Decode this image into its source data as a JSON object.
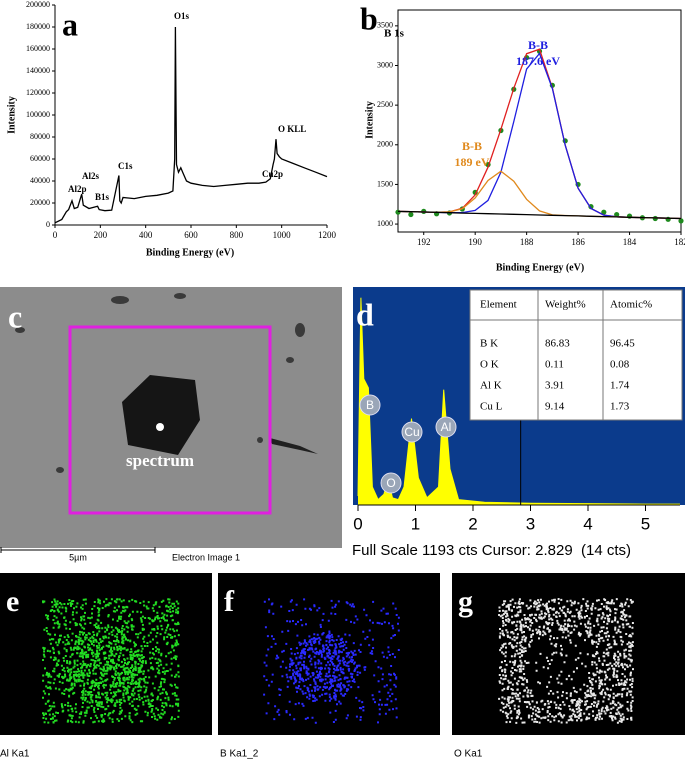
{
  "chart_data": [
    {
      "type": "line",
      "panel_label": "a",
      "xlabel": "Binding Energy (eV)",
      "ylabel": "Intensity",
      "x": [
        0,
        30,
        50,
        60,
        75,
        85,
        100,
        118,
        125,
        150,
        188,
        195,
        220,
        250,
        282,
        286,
        292,
        300,
        350,
        400,
        450,
        500,
        520,
        528,
        531,
        536,
        545,
        555,
        565,
        580,
        600,
        650,
        700,
        750,
        800,
        850,
        900,
        930,
        950,
        962,
        968,
        975,
        980,
        990,
        1000,
        1050,
        1100,
        1150,
        1200
      ],
      "series": [
        {
          "color": "#000000",
          "style": "line",
          "values": [
            2000,
            5000,
            12000,
            14000,
            22000,
            15000,
            16000,
            28000,
            18000,
            15000,
            17000,
            14000,
            13000,
            13500,
            45000,
            22000,
            20000,
            25000,
            24000,
            26000,
            27000,
            29000,
            31000,
            60000,
            180000,
            55000,
            48000,
            52000,
            47000,
            40000,
            38000,
            36000,
            35000,
            36000,
            37000,
            38000,
            38000,
            39000,
            42000,
            55000,
            60000,
            78000,
            65000,
            62000,
            60000,
            56000,
            52000,
            48000,
            44000
          ]
        }
      ],
      "xlim": [
        0,
        1200
      ],
      "ylim": [
        0,
        200000
      ],
      "xticks": [
        0,
        200,
        400,
        600,
        800,
        1000,
        1200
      ],
      "yticks": [
        0,
        20000,
        40000,
        60000,
        80000,
        100000,
        120000,
        140000,
        160000,
        180000,
        200000
      ],
      "annotations": [
        {
          "text": "Al2p",
          "color": "#000000"
        },
        {
          "text": "Al2s",
          "color": "#000000"
        },
        {
          "text": "B1s",
          "color": "#000000"
        },
        {
          "text": "C1s",
          "color": "#000000"
        },
        {
          "text": "O1s",
          "color": "#000000"
        },
        {
          "text": "Cu2p",
          "color": "#000000"
        },
        {
          "text": "O KLL",
          "color": "#000000"
        }
      ]
    },
    {
      "type": "line",
      "panel_label": "b",
      "title": "B 1s",
      "xlabel": "Binding Energy (eV)",
      "ylabel": "Intensity",
      "x": [
        193,
        192.5,
        192,
        191.5,
        191,
        190.5,
        190,
        189.5,
        189,
        188.5,
        188,
        187.5,
        187,
        186.5,
        186,
        185.5,
        185,
        184.5,
        184,
        183.5,
        183,
        182.5,
        182
      ],
      "series": [
        {
          "color": "#1e8a1e",
          "style": "markers",
          "values": [
            1150,
            1120,
            1160,
            1130,
            1140,
            1190,
            1400,
            1750,
            2180,
            2700,
            3100,
            3180,
            2750,
            2050,
            1500,
            1220,
            1150,
            1120,
            1100,
            1080,
            1070,
            1060,
            1040
          ]
        },
        {
          "color": "#e02020",
          "style": "line",
          "values": [
            1160,
            1156,
            1152,
            1149,
            1153,
            1199,
            1368,
            1717,
            2195,
            2712,
            3149,
            3205,
            2718,
            1996,
            1452,
            1196,
            1113,
            1092,
            1086,
            1082,
            1078,
            1074,
            1070
          ]
        },
        {
          "color": "#1f1fe0",
          "style": "line",
          "values": [
            1160,
            1156,
            1152,
            1148,
            1144,
            1145,
            1173,
            1299,
            1655,
            2294,
            2954,
            3151,
            2709,
            1995,
            1452,
            1196,
            1113,
            1092,
            1086,
            1082,
            1078,
            1074,
            1070
          ]
        },
        {
          "color": "#e08a1e",
          "style": "line",
          "values": [
            1160,
            1156,
            1152,
            1149,
            1153,
            1193,
            1330,
            1549,
            1667,
            1541,
            1313,
            1166,
            1116,
            1108,
            1103,
            1098,
            1094,
            1090,
            1086,
            1082,
            1078,
            1074,
            1070
          ]
        },
        {
          "color": "#000000",
          "style": "line",
          "values": [
            1160,
            1156,
            1152,
            1148,
            1144,
            1139,
            1135,
            1131,
            1127,
            1123,
            1119,
            1115,
            1111,
            1107,
            1103,
            1098,
            1094,
            1090,
            1086,
            1082,
            1078,
            1074,
            1070
          ]
        }
      ],
      "xlim": [
        193,
        182
      ],
      "ylim": [
        900,
        3700
      ],
      "xticks": [
        192,
        190,
        188,
        186,
        184,
        182
      ],
      "yticks": [
        1000,
        1500,
        2000,
        2500,
        3000,
        3500
      ],
      "annotations": [
        {
          "text": "B-B",
          "color": "#1f1fe0"
        },
        {
          "text": "187.6 eV",
          "color": "#1f1fe0"
        },
        {
          "text": "B-B",
          "color": "#e08a1e"
        },
        {
          "text": "189 eV",
          "color": "#e08a1e"
        }
      ]
    },
    {
      "type": "area",
      "panel_label": "d",
      "color": "#ffff00",
      "background": "#0b3b8c",
      "x": [
        0,
        0.05,
        0.1,
        0.18,
        0.25,
        0.35,
        0.45,
        0.52,
        0.6,
        0.7,
        0.8,
        0.93,
        1.05,
        1.2,
        1.4,
        1.49,
        1.6,
        1.75,
        2.2,
        3,
        4,
        5,
        5.6
      ],
      "values": [
        50,
        1150,
        700,
        650,
        100,
        30,
        60,
        140,
        40,
        30,
        100,
        480,
        150,
        40,
        100,
        640,
        200,
        30,
        15,
        10,
        8,
        5,
        5
      ],
      "xlim": [
        0,
        5.6
      ],
      "ylim": [
        0,
        1193
      ],
      "xticks": [
        0,
        1,
        2,
        3,
        4,
        5
      ],
      "peak_labels": [
        "B",
        "O",
        "Cu",
        "Al"
      ],
      "cursor": 2.829,
      "footer": "Full Scale 1193 cts Cursor: 2.829  (14 cts)",
      "table": {
        "columns": [
          "Element",
          "Weight%",
          "Atomic%"
        ],
        "rows": [
          [
            "B K",
            86.83,
            96.45
          ],
          [
            "O K",
            0.11,
            0.08
          ],
          [
            "Al K",
            3.91,
            1.74
          ],
          [
            "Cu L",
            9.14,
            1.73
          ]
        ]
      }
    }
  ],
  "sem_image": {
    "label": "c",
    "annotation": "spectrum",
    "scale_bar": "5µm",
    "caption": "Electron Image 1"
  },
  "maps": [
    {
      "label": "e",
      "caption": "Al Ka1",
      "color": "#22dd22"
    },
    {
      "label": "f",
      "caption": "B Ka1_2",
      "color": "#2a2aff"
    },
    {
      "label": "g",
      "caption": "O Ka1",
      "color": "#e8e8e8"
    }
  ]
}
